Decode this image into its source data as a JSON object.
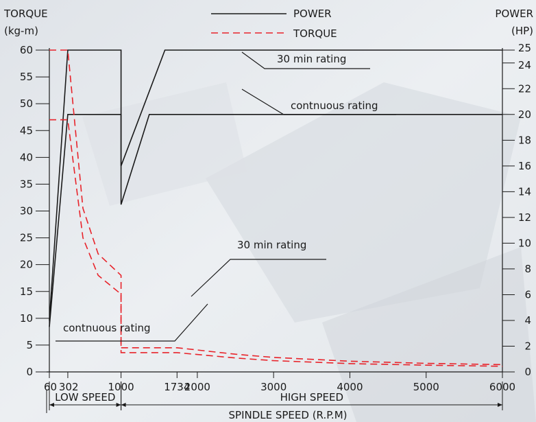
{
  "chart_data": {
    "type": "line",
    "y_left_title": "TORQUE",
    "y_left_unit": "(kg-m)",
    "y_right_title": "POWER",
    "y_right_unit": "(HP)",
    "legend": [
      {
        "name": "POWER",
        "style": "solid",
        "color": "#1a1a1a"
      },
      {
        "name": "TORQUE",
        "style": "dashed",
        "color": "#e8232a"
      }
    ],
    "xlabel": "SPINDLE SPEED (R.P.M)",
    "x_ticks": [
      "60",
      "302",
      "1000",
      "1734",
      "2000",
      "3000",
      "4000",
      "5000",
      "6000"
    ],
    "x_tick_values": [
      60,
      302,
      1000,
      1734,
      2000,
      3000,
      4000,
      5000,
      6000
    ],
    "y_left_ticks": [
      0,
      5,
      10,
      15,
      20,
      25,
      30,
      35,
      40,
      45,
      50,
      55,
      60
    ],
    "y_right_ticks": [
      0,
      2,
      4,
      6,
      8,
      10,
      12,
      14,
      16,
      18,
      20,
      22,
      24,
      25
    ],
    "xlim": [
      60,
      6000
    ],
    "ylim_left": [
      0,
      60
    ],
    "ylim_right": [
      0,
      25
    ],
    "ranges": [
      {
        "label": "LOW SPEED",
        "from": 60,
        "to": 1000
      },
      {
        "label": "HIGH SPEED",
        "from": 1000,
        "to": 6000
      }
    ],
    "annotations": [
      "30 min rating",
      "contnuous rating",
      "30 min rating",
      "contnuous rating"
    ],
    "series": [
      {
        "name": "POWER",
        "rating": "30 min",
        "axis": "right",
        "x": [
          60,
          302,
          1000,
          1000,
          1575,
          6000
        ],
        "y": [
          4,
          25,
          25,
          16,
          25,
          25
        ]
      },
      {
        "name": "POWER",
        "rating": "continuous",
        "axis": "right",
        "x": [
          60,
          302,
          1000,
          1000,
          1370,
          6000
        ],
        "y": [
          3.5,
          20,
          20,
          13,
          20,
          20
        ]
      },
      {
        "name": "TORQUE",
        "rating": "30 min",
        "axis": "left",
        "x": [
          60,
          302,
          500,
          700,
          1000,
          1000,
          1734,
          2500,
          3000,
          4000,
          5000,
          6000
        ],
        "y": [
          60,
          60,
          30.5,
          22,
          18,
          4.5,
          4.5,
          3.3,
          2.7,
          2.0,
          1.6,
          1.35
        ]
      },
      {
        "name": "TORQUE",
        "rating": "continuous",
        "axis": "left",
        "x": [
          60,
          302,
          500,
          700,
          1000,
          1000,
          1734,
          2500,
          3000,
          4000,
          5000,
          6000
        ],
        "y": [
          47,
          47,
          25,
          18,
          14.5,
          3.6,
          3.6,
          2.6,
          2.1,
          1.55,
          1.25,
          1.05
        ]
      }
    ]
  }
}
